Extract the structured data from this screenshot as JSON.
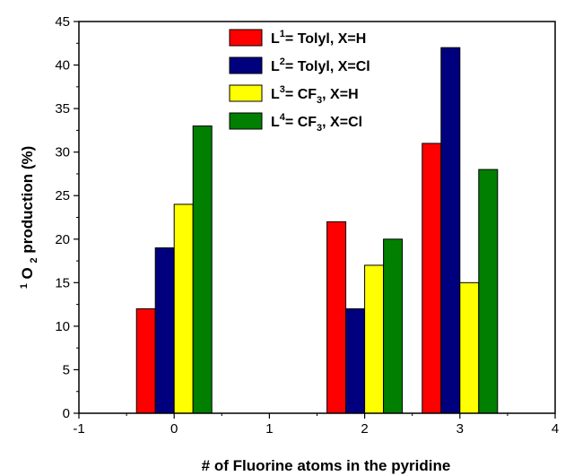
{
  "chart_data": {
    "type": "bar",
    "xlabel": "# of Fluorine atoms in the pyridine",
    "ylabel": {
      "sup": "1",
      "base": "O",
      "sub": "2",
      "rest": " production (%)"
    },
    "xlim": [
      -1,
      4
    ],
    "ylim": [
      0,
      45
    ],
    "xticks": [
      -1,
      0,
      1,
      2,
      3,
      4
    ],
    "yticks": [
      0,
      5,
      10,
      15,
      20,
      25,
      30,
      35,
      40,
      45
    ],
    "x": [
      0,
      2,
      3
    ],
    "series": [
      {
        "name": "L1 = Tolyl, X=H",
        "legend": {
          "prefix": "L",
          "sup": "1",
          "text": "= Tolyl, X=H"
        },
        "color": "#ff0000",
        "values": [
          12,
          22,
          31
        ]
      },
      {
        "name": "L2 = Tolyl, X=Cl",
        "legend": {
          "prefix": "L",
          "sup": "2",
          "text": "= Tolyl, X=Cl"
        },
        "color": "#00007f",
        "values": [
          19,
          12,
          42
        ]
      },
      {
        "name": "L3 = CF3, X=H",
        "legend": {
          "prefix": "L",
          "sup": "3",
          "text": "= CF",
          "sub": "3",
          "tail": ", X=H"
        },
        "color": "#ffff00",
        "values": [
          24,
          17,
          15
        ]
      },
      {
        "name": "L4 = CF3, X=Cl",
        "legend": {
          "prefix": "L",
          "sup": "4",
          "text": "= CF",
          "sub": "3",
          "tail": ", X=Cl"
        },
        "color": "#007f00",
        "values": [
          33,
          20,
          28
        ]
      }
    ],
    "legend_position": "top-center",
    "grid": false
  }
}
